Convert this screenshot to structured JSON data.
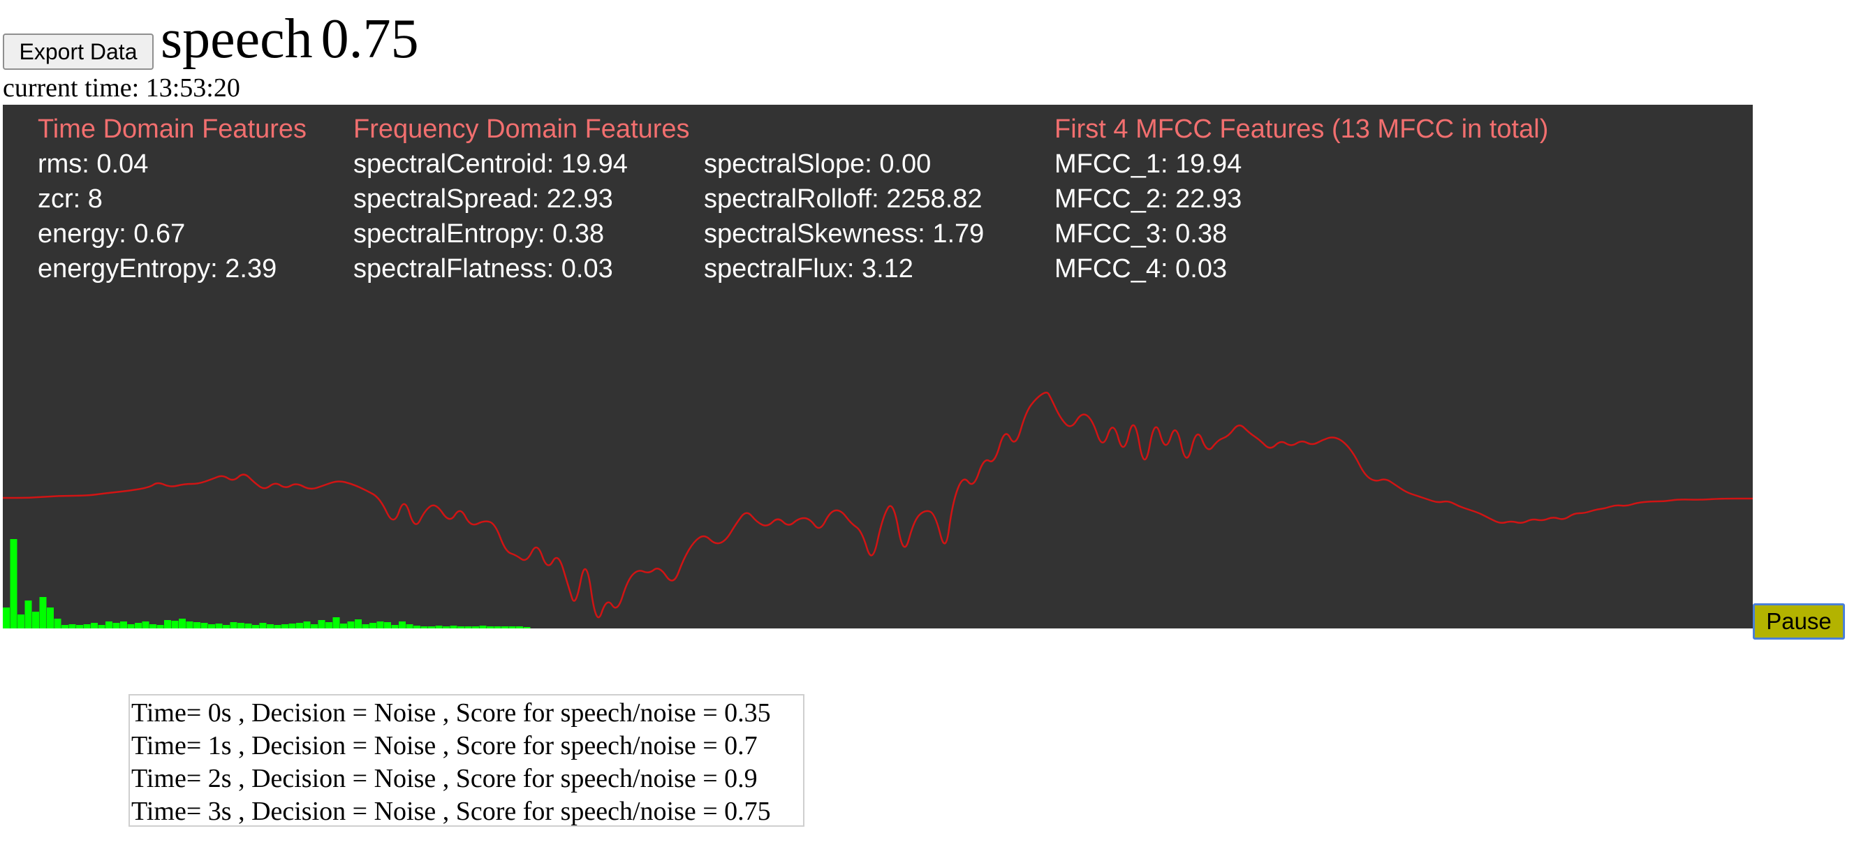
{
  "toolbar": {
    "export_label": "Export Data"
  },
  "status": {
    "label": "speech",
    "score": "0.75"
  },
  "clock": {
    "prefix": "current time: ",
    "value": "13:53:20"
  },
  "features": {
    "time_domain": {
      "title": "Time Domain Features",
      "rows": [
        "rms: 0.04",
        "zcr: 8",
        "energy: 0.67",
        "energyEntropy: 2.39"
      ]
    },
    "frequency_domain": {
      "title": "Frequency Domain Features",
      "col1": [
        "spectralCentroid: 19.94",
        "spectralSpread: 22.93",
        "spectralEntropy: 0.38",
        "spectralFlatness: 0.03"
      ],
      "col2": [
        "spectralSlope: 0.00",
        "spectralRolloff: 2258.82",
        "spectralSkewness: 1.79",
        "spectralFlux: 3.12"
      ]
    },
    "mfcc": {
      "title": "First 4 MFCC Features (13 MFCC in total)",
      "rows": [
        "MFCC_1: 19.94",
        "MFCC_2: 22.93",
        "MFCC_3: 0.38",
        "MFCC_4: 0.03"
      ]
    }
  },
  "colors": {
    "panel_bg": "#333333",
    "heading": "#f26f6f",
    "waveform": "#d11414",
    "spectrum": "#00ff00",
    "pause_bg": "#b3b300"
  },
  "controls": {
    "pause_label": "Pause"
  },
  "log": [
    "Time= 0s , Decision = Noise , Score for speech/noise = 0.35",
    "Time= 1s , Decision = Noise , Score for speech/noise = 0.7",
    "Time= 2s , Decision = Noise , Score for speech/noise = 0.9",
    "Time= 3s , Decision = Noise , Score for speech/noise = 0.75"
  ]
}
